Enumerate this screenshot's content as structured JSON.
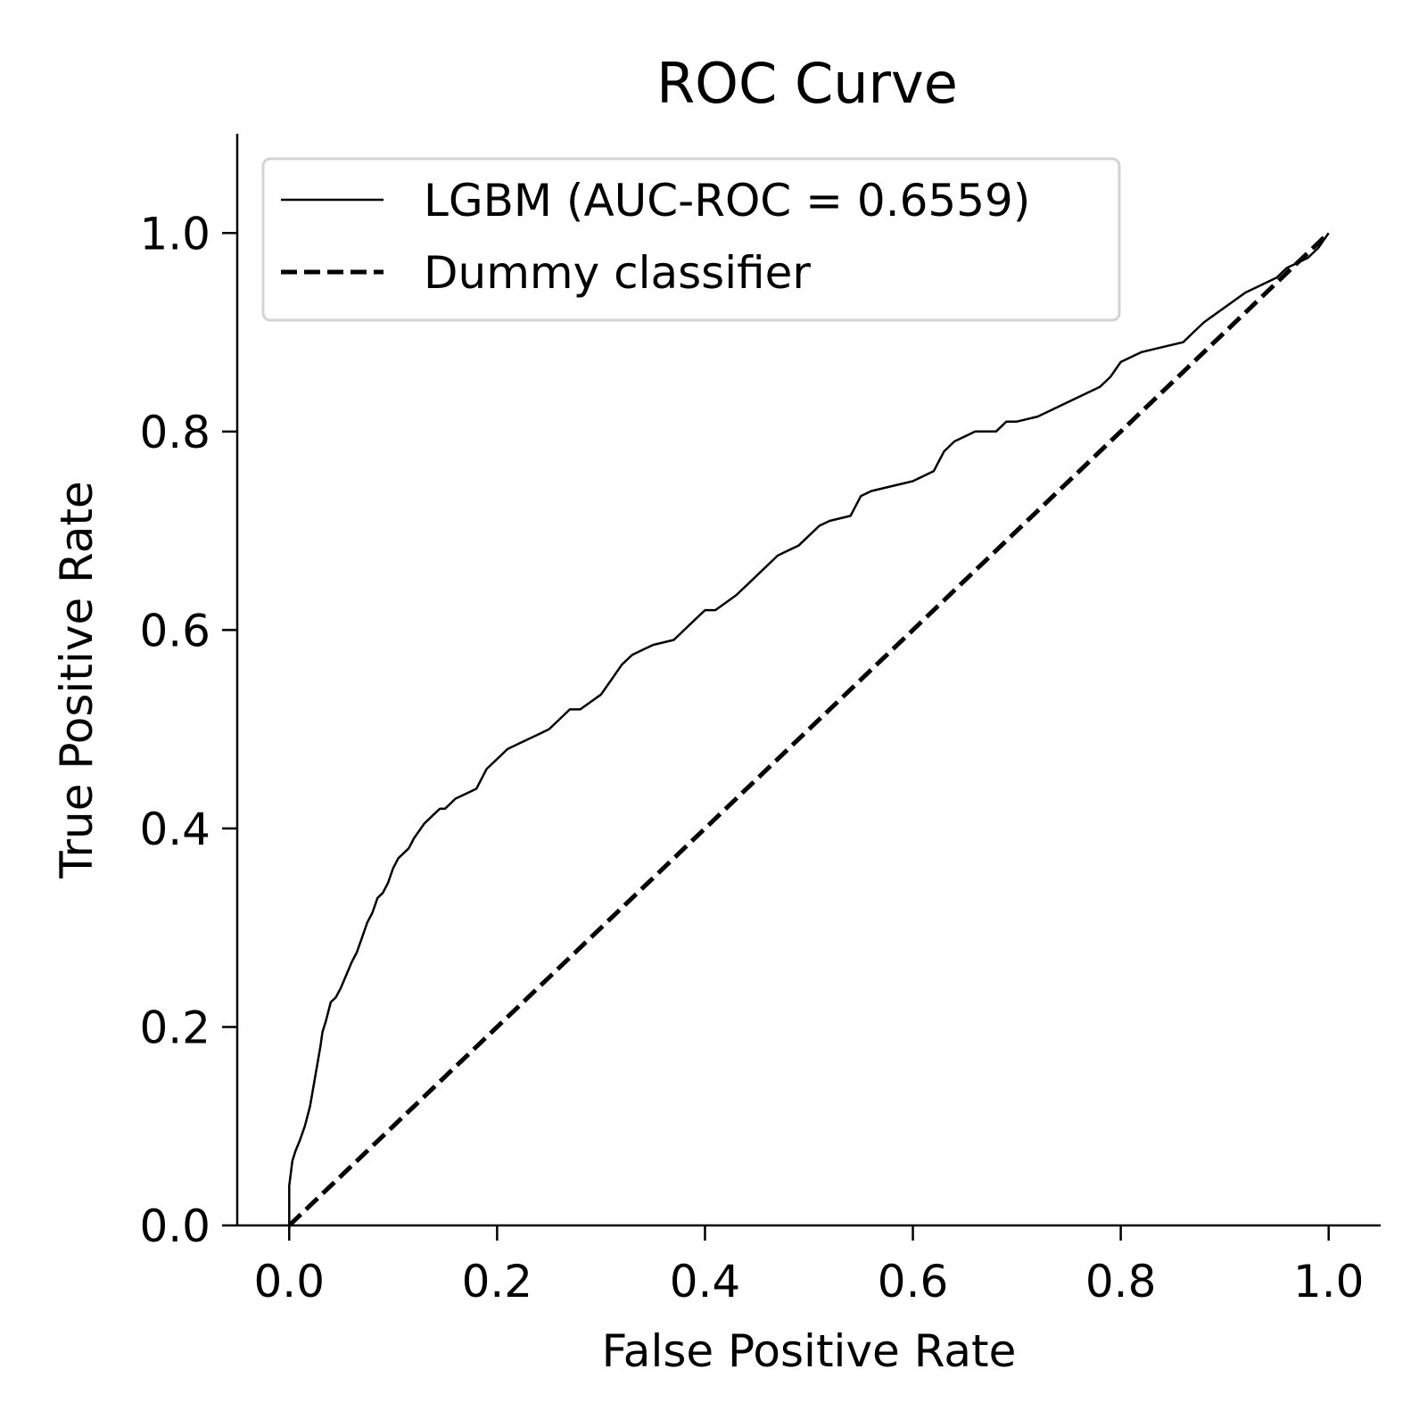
{
  "chart_data": {
    "type": "line",
    "title": "ROC Curve",
    "xlabel": "False Positive Rate",
    "ylabel": "True Positive Rate",
    "xlim": [
      -0.05,
      1.05
    ],
    "ylim": [
      0.0,
      1.1
    ],
    "xticks": [
      0.0,
      0.2,
      0.4,
      0.6,
      0.8,
      1.0
    ],
    "xtick_labels": [
      "0.0",
      "0.2",
      "0.4",
      "0.6",
      "0.8",
      "1.0"
    ],
    "yticks": [
      0.0,
      0.2,
      0.4,
      0.6,
      0.8,
      1.0
    ],
    "ytick_labels": [
      "0.0",
      "0.2",
      "0.4",
      "0.6",
      "0.8",
      "1.0"
    ],
    "grid": false,
    "legend": {
      "position": "top-left"
    },
    "series": [
      {
        "name": "LGBM (AUC-ROC = 0.6559)",
        "color": "#000000",
        "style": "solid",
        "x": [
          0.0,
          0.0,
          0.003,
          0.006,
          0.01,
          0.015,
          0.02,
          0.025,
          0.03,
          0.032,
          0.035,
          0.04,
          0.045,
          0.05,
          0.06,
          0.065,
          0.07,
          0.075,
          0.08,
          0.085,
          0.09,
          0.095,
          0.1,
          0.105,
          0.11,
          0.115,
          0.12,
          0.13,
          0.14,
          0.145,
          0.15,
          0.16,
          0.17,
          0.18,
          0.19,
          0.2,
          0.205,
          0.21,
          0.22,
          0.23,
          0.24,
          0.25,
          0.26,
          0.27,
          0.28,
          0.3,
          0.31,
          0.32,
          0.33,
          0.34,
          0.35,
          0.37,
          0.38,
          0.39,
          0.4,
          0.41,
          0.43,
          0.44,
          0.45,
          0.46,
          0.47,
          0.48,
          0.49,
          0.5,
          0.51,
          0.52,
          0.54,
          0.55,
          0.56,
          0.58,
          0.6,
          0.62,
          0.63,
          0.64,
          0.65,
          0.66,
          0.68,
          0.69,
          0.7,
          0.72,
          0.74,
          0.75,
          0.76,
          0.78,
          0.79,
          0.8,
          0.82,
          0.84,
          0.86,
          0.87,
          0.88,
          0.9,
          0.92,
          0.94,
          0.95,
          0.96,
          0.97,
          0.98,
          0.99,
          1.0
        ],
        "y": [
          0.0,
          0.04,
          0.065,
          0.075,
          0.085,
          0.1,
          0.12,
          0.15,
          0.18,
          0.195,
          0.205,
          0.225,
          0.23,
          0.24,
          0.265,
          0.275,
          0.29,
          0.305,
          0.315,
          0.33,
          0.335,
          0.345,
          0.36,
          0.37,
          0.375,
          0.38,
          0.39,
          0.405,
          0.415,
          0.42,
          0.42,
          0.43,
          0.435,
          0.44,
          0.46,
          0.47,
          0.475,
          0.48,
          0.485,
          0.49,
          0.495,
          0.5,
          0.51,
          0.52,
          0.52,
          0.535,
          0.55,
          0.565,
          0.575,
          0.58,
          0.585,
          0.59,
          0.6,
          0.61,
          0.62,
          0.62,
          0.635,
          0.645,
          0.655,
          0.665,
          0.675,
          0.68,
          0.685,
          0.695,
          0.705,
          0.71,
          0.715,
          0.735,
          0.74,
          0.745,
          0.75,
          0.76,
          0.78,
          0.79,
          0.795,
          0.8,
          0.8,
          0.81,
          0.81,
          0.815,
          0.825,
          0.83,
          0.835,
          0.845,
          0.855,
          0.87,
          0.88,
          0.885,
          0.89,
          0.9,
          0.91,
          0.925,
          0.94,
          0.95,
          0.955,
          0.965,
          0.97,
          0.975,
          0.985,
          1.0
        ]
      },
      {
        "name": "Dummy classifier",
        "color": "#000000",
        "style": "dashed",
        "x": [
          0.0,
          1.0
        ],
        "y": [
          0.0,
          1.0
        ]
      }
    ]
  }
}
